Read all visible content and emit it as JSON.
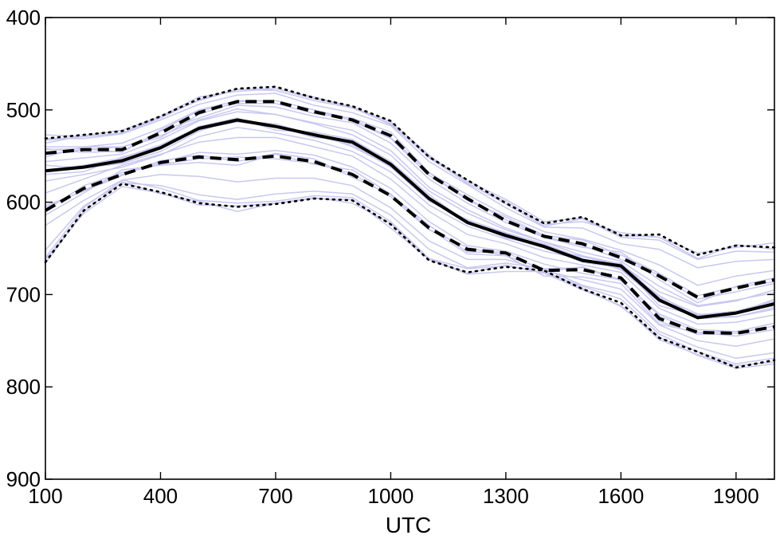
{
  "chart_data": {
    "type": "line",
    "title": "",
    "xlabel": "UTC",
    "ylabel": "",
    "xlim": [
      100,
      2000
    ],
    "ylim": [
      400,
      900
    ],
    "y_reversed": true,
    "grid": false,
    "x_ticks": [
      100,
      400,
      700,
      1000,
      1300,
      1600,
      1900
    ],
    "y_ticks": [
      400,
      500,
      600,
      700,
      800,
      900
    ],
    "x": [
      100,
      200,
      300,
      400,
      500,
      600,
      700,
      800,
      900,
      1000,
      1100,
      1200,
      1300,
      1400,
      1500,
      1600,
      1700,
      1800,
      1900,
      2000
    ],
    "colors": {
      "ensemble": "#c8c8f0",
      "summary": "#000000"
    },
    "series": [
      {
        "style": "solid",
        "values": [
          566,
          562,
          555,
          541,
          520,
          511,
          518,
          527,
          535,
          559,
          596,
          622,
          636,
          648,
          663,
          669,
          706,
          725,
          720,
          710
        ]
      },
      {
        "style": "dashed",
        "values": [
          547,
          543,
          543,
          525,
          503,
          491,
          491,
          502,
          511,
          528,
          570,
          596,
          620,
          637,
          645,
          660,
          680,
          703,
          693,
          684
        ]
      },
      {
        "style": "dashed",
        "values": [
          609,
          585,
          570,
          557,
          551,
          554,
          550,
          556,
          570,
          593,
          628,
          651,
          655,
          674,
          673,
          682,
          726,
          741,
          742,
          735
        ]
      },
      {
        "style": "dotted",
        "values": [
          531,
          527,
          523,
          507,
          488,
          477,
          475,
          487,
          496,
          512,
          551,
          576,
          601,
          623,
          616,
          636,
          635,
          657,
          647,
          649
        ]
      },
      {
        "style": "dotted",
        "values": [
          665,
          609,
          580,
          589,
          601,
          605,
          602,
          596,
          598,
          624,
          663,
          676,
          670,
          674,
          694,
          709,
          747,
          762,
          779,
          771
        ]
      }
    ],
    "ensemble_members": [
      [
        548,
        543,
        540,
        528,
        511,
        499,
        505,
        515,
        527,
        549,
        588,
        612,
        630,
        643,
        658,
        667,
        697,
        713,
        707,
        695
      ],
      [
        567,
        560,
        552,
        538,
        519,
        512,
        515,
        528,
        538,
        562,
        598,
        621,
        634,
        648,
        665,
        671,
        701,
        725,
        720,
        712
      ],
      [
        606,
        587,
        570,
        557,
        546,
        548,
        544,
        549,
        562,
        585,
        621,
        647,
        653,
        667,
        677,
        684,
        723,
        741,
        740,
        731
      ],
      [
        531,
        531,
        526,
        511,
        494,
        484,
        482,
        495,
        503,
        517,
        556,
        581,
        606,
        627,
        628,
        645,
        651,
        671,
        664,
        662
      ],
      [
        652,
        604,
        579,
        582,
        592,
        597,
        591,
        588,
        591,
        614,
        651,
        671,
        666,
        672,
        690,
        700,
        740,
        757,
        769,
        763
      ],
      [
        566,
        560,
        557,
        542,
        518,
        509,
        522,
        524,
        532,
        556,
        592,
        622,
        638,
        649,
        659,
        668,
        712,
        723,
        720,
        705
      ],
      [
        542,
        546,
        545,
        523,
        509,
        495,
        497,
        507,
        514,
        536,
        575,
        601,
        622,
        638,
        649,
        654,
        684,
        709,
        691,
        682
      ],
      [
        614,
        590,
        565,
        560,
        557,
        560,
        548,
        559,
        565,
        591,
        629,
        656,
        658,
        680,
        681,
        688,
        732,
        741,
        745,
        738
      ],
      [
        533,
        529,
        525,
        509,
        489,
        478,
        479,
        490,
        498,
        515,
        552,
        579,
        602,
        626,
        618,
        638,
        641,
        662,
        653,
        654
      ],
      [
        660,
        606,
        576,
        585,
        598,
        601,
        599,
        593,
        595,
        621,
        661,
        672,
        669,
        676,
        691,
        705,
        743,
        762,
        775,
        769
      ],
      [
        570,
        567,
        551,
        540,
        521,
        513,
        517,
        530,
        533,
        560,
        596,
        620,
        639,
        646,
        664,
        666,
        703,
        721,
        724,
        716
      ],
      [
        551,
        540,
        540,
        530,
        505,
        491,
        490,
        500,
        512,
        531,
        571,
        596,
        619,
        637,
        647,
        662,
        679,
        705,
        697,
        688
      ],
      [
        604,
        588,
        571,
        555,
        549,
        556,
        547,
        553,
        573,
        592,
        625,
        654,
        654,
        675,
        670,
        684,
        729,
        743,
        742,
        734
      ],
      [
        536,
        528,
        522,
        507,
        486,
        480,
        477,
        488,
        497,
        513,
        549,
        580,
        599,
        624,
        621,
        633,
        638,
        655,
        649,
        644
      ],
      [
        662,
        612,
        583,
        590,
        603,
        604,
        601,
        595,
        601,
        623,
        661,
        677,
        668,
        677,
        695,
        712,
        749,
        765,
        777,
        773
      ],
      [
        560,
        563,
        558,
        545,
        523,
        510,
        519,
        525,
        540,
        561,
        599,
        619,
        633,
        645,
        661,
        673,
        708,
        722,
        718,
        707
      ],
      [
        543,
        542,
        546,
        522,
        501,
        493,
        493,
        504,
        509,
        524,
        568,
        598,
        616,
        636,
        641,
        657,
        677,
        701,
        692,
        686
      ],
      [
        609,
        582,
        568,
        559,
        553,
        551,
        553,
        558,
        569,
        594,
        630,
        649,
        658,
        672,
        671,
        685,
        721,
        738,
        740,
        731
      ],
      [
        527,
        529,
        525,
        507,
        490,
        478,
        477,
        486,
        497,
        516,
        551,
        577,
        597,
        621,
        617,
        636,
        638,
        661,
        646,
        651
      ],
      [
        666,
        610,
        578,
        591,
        599,
        610,
        601,
        596,
        597,
        628,
        662,
        678,
        675,
        675,
        693,
        713,
        746,
        766,
        780,
        775
      ],
      [
        590,
        575,
        560,
        548,
        535,
        530,
        530,
        540,
        550,
        575,
        610,
        635,
        645,
        660,
        668,
        676,
        715,
        732,
        730,
        722
      ],
      [
        556,
        552,
        548,
        532,
        512,
        502,
        505,
        514,
        522,
        544,
        584,
        608,
        628,
        643,
        654,
        664,
        691,
        712,
        706,
        698
      ],
      [
        540,
        540,
        536,
        520,
        500,
        490,
        490,
        500,
        510,
        530,
        568,
        592,
        614,
        632,
        640,
        652,
        668,
        690,
        680,
        674
      ],
      [
        625,
        598,
        576,
        570,
        572,
        578,
        574,
        574,
        582,
        606,
        642,
        662,
        662,
        674,
        684,
        694,
        733,
        750,
        756,
        748
      ],
      [
        577,
        570,
        562,
        549,
        529,
        519,
        525,
        533,
        545,
        567,
        603,
        626,
        640,
        653,
        662,
        672,
        706,
        726,
        724,
        714
      ]
    ]
  }
}
